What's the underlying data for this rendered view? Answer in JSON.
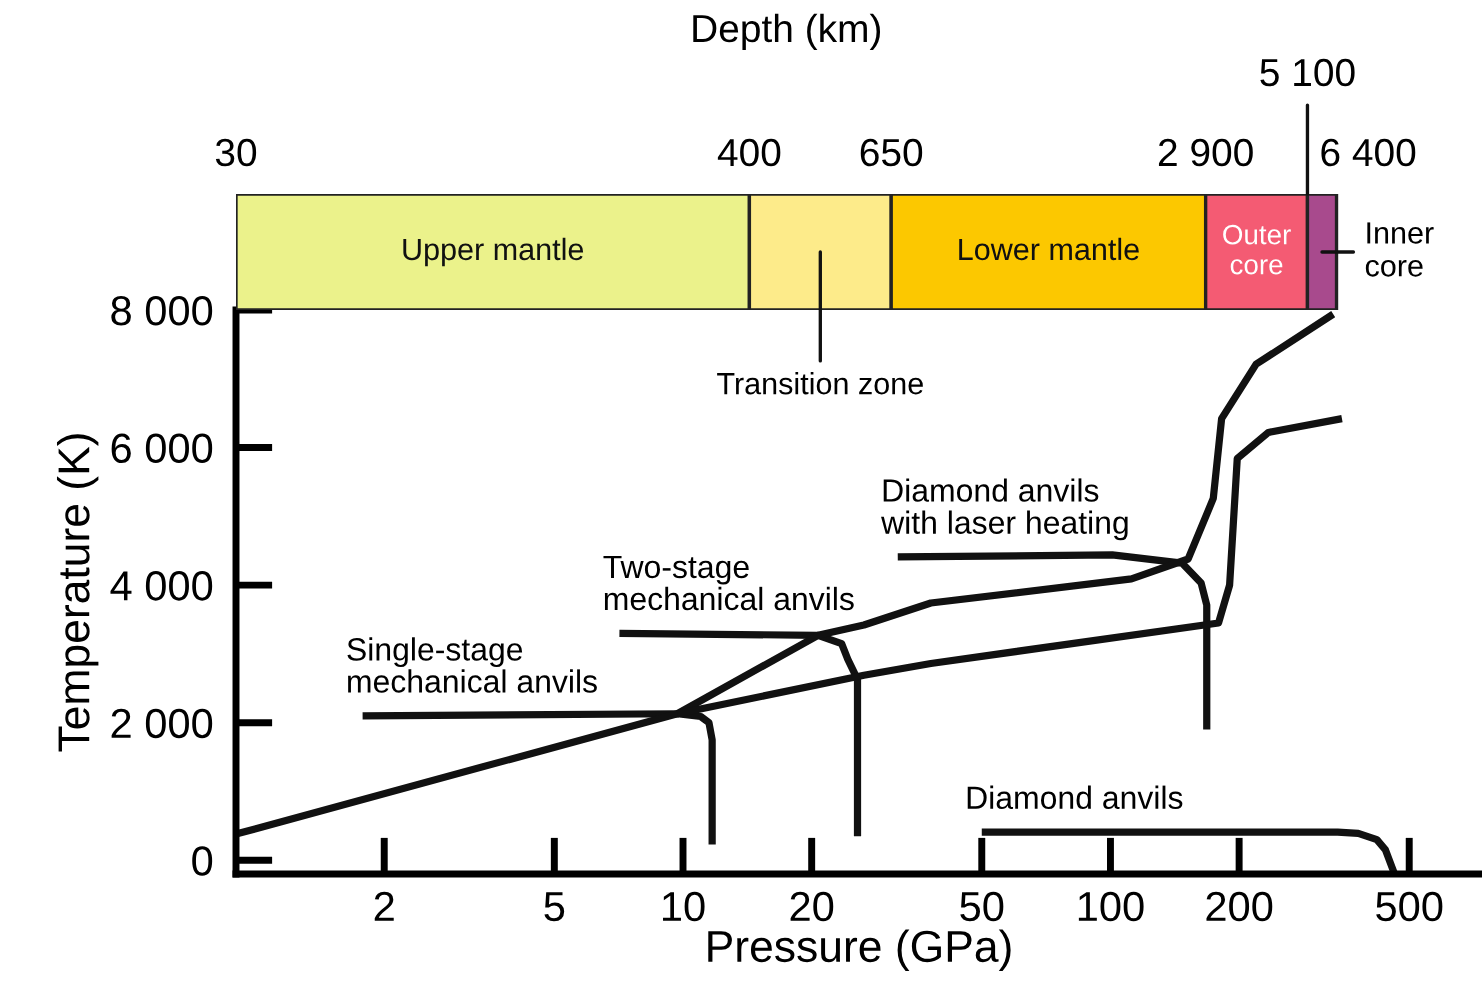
{
  "chart_data": [
    {
      "type": "bar",
      "orientation": "horizontal",
      "categories": [
        null
      ],
      "log": "x",
      "xlim": [
        0.9,
        740
      ],
      "x2label": "Depth (km)",
      "tick_labels": false,
      "annotations": [
        "30",
        "400",
        "650",
        "2 900",
        "5 100",
        "6 400"
      ],
      "series": [
        {
          "name": "Upper mantle",
          "color": "#ebf28b",
          "base": [
            0.9
          ],
          "values": [
            13.4
          ]
        },
        {
          "name": "Transition zone",
          "color": "#fdeb8a",
          "base": [
            14.3
          ],
          "values": [
            16.4
          ]
        },
        {
          "name": "Lower mantle",
          "color": "#fcc800",
          "base": [
            30.7
          ],
          "values": [
            136.3
          ]
        },
        {
          "name": "Outer core",
          "color": "#f45b73",
          "base": [
            167
          ],
          "values": [
            122
          ]
        },
        {
          "name": "Inner core",
          "color": "#a84a8d",
          "base": [
            289
          ],
          "values": [
            49
          ]
        }
      ]
    },
    {
      "type": "line",
      "log": "x",
      "xlim": [
        0.9,
        740
      ],
      "ylim": [
        -200,
        8000
      ],
      "xlabel": "Pressure (GPa)",
      "ylabel": "Temperature (K)",
      "grid": false,
      "legend": false,
      "marker": "none",
      "line_style": "solid",
      "xticks": [
        2,
        5,
        10,
        20,
        50,
        100,
        200,
        500
      ],
      "yticks": [
        {
          "value": 0,
          "label": "0"
        },
        {
          "value": 2000,
          "label": "2 000"
        },
        {
          "value": 4000,
          "label": "4 000"
        },
        {
          "value": 6000,
          "label": "6 000"
        },
        {
          "value": 8000,
          "label": "8 000"
        }
      ],
      "series": [
        {
          "name": "Single-stage\nmechanical anvils",
          "color": "#111111",
          "x": [
            1.78,
            9.7,
            11,
            11.5,
            11.7,
            11.7
          ],
          "values": [
            2100,
            2130,
            2090,
            2000,
            1750,
            230
          ]
        },
        {
          "name": "Two-stage\nmechanical anvils",
          "color": "#111111",
          "x": [
            7.1,
            20.7,
            23.5,
            24.3,
            25.6,
            25.6
          ],
          "values": [
            3300,
            3270,
            3150,
            2920,
            2630,
            350
          ]
        },
        {
          "name": "Diamond anvils\nwith laser heating",
          "color": "#111111",
          "x": [
            31.8,
            101,
            147,
            163,
            168,
            168
          ],
          "values": [
            4410,
            4440,
            4320,
            4030,
            3710,
            1900
          ]
        },
        {
          "name": "Diamond anvils",
          "color": "#111111",
          "x": [
            50,
            340,
            380,
            420,
            440,
            462
          ],
          "values": [
            410,
            410,
            390,
            300,
            150,
            -200
          ]
        },
        {
          "color": "#111111",
          "x": [
            0.9,
            9.7,
            20.7,
            26.5,
            38,
            112,
            152,
            174,
            182,
            219,
            332
          ],
          "values": [
            380,
            2130,
            3270,
            3420,
            3740,
            4090,
            4380,
            5260,
            6420,
            7210,
            7940
          ]
        },
        {
          "color": "#111111",
          "x": [
            9.7,
            26.5,
            38,
            179,
            190,
            198,
            234,
            348
          ],
          "values": [
            2130,
            2690,
            2860,
            3450,
            4000,
            5840,
            6220,
            6420
          ]
        }
      ]
    }
  ]
}
